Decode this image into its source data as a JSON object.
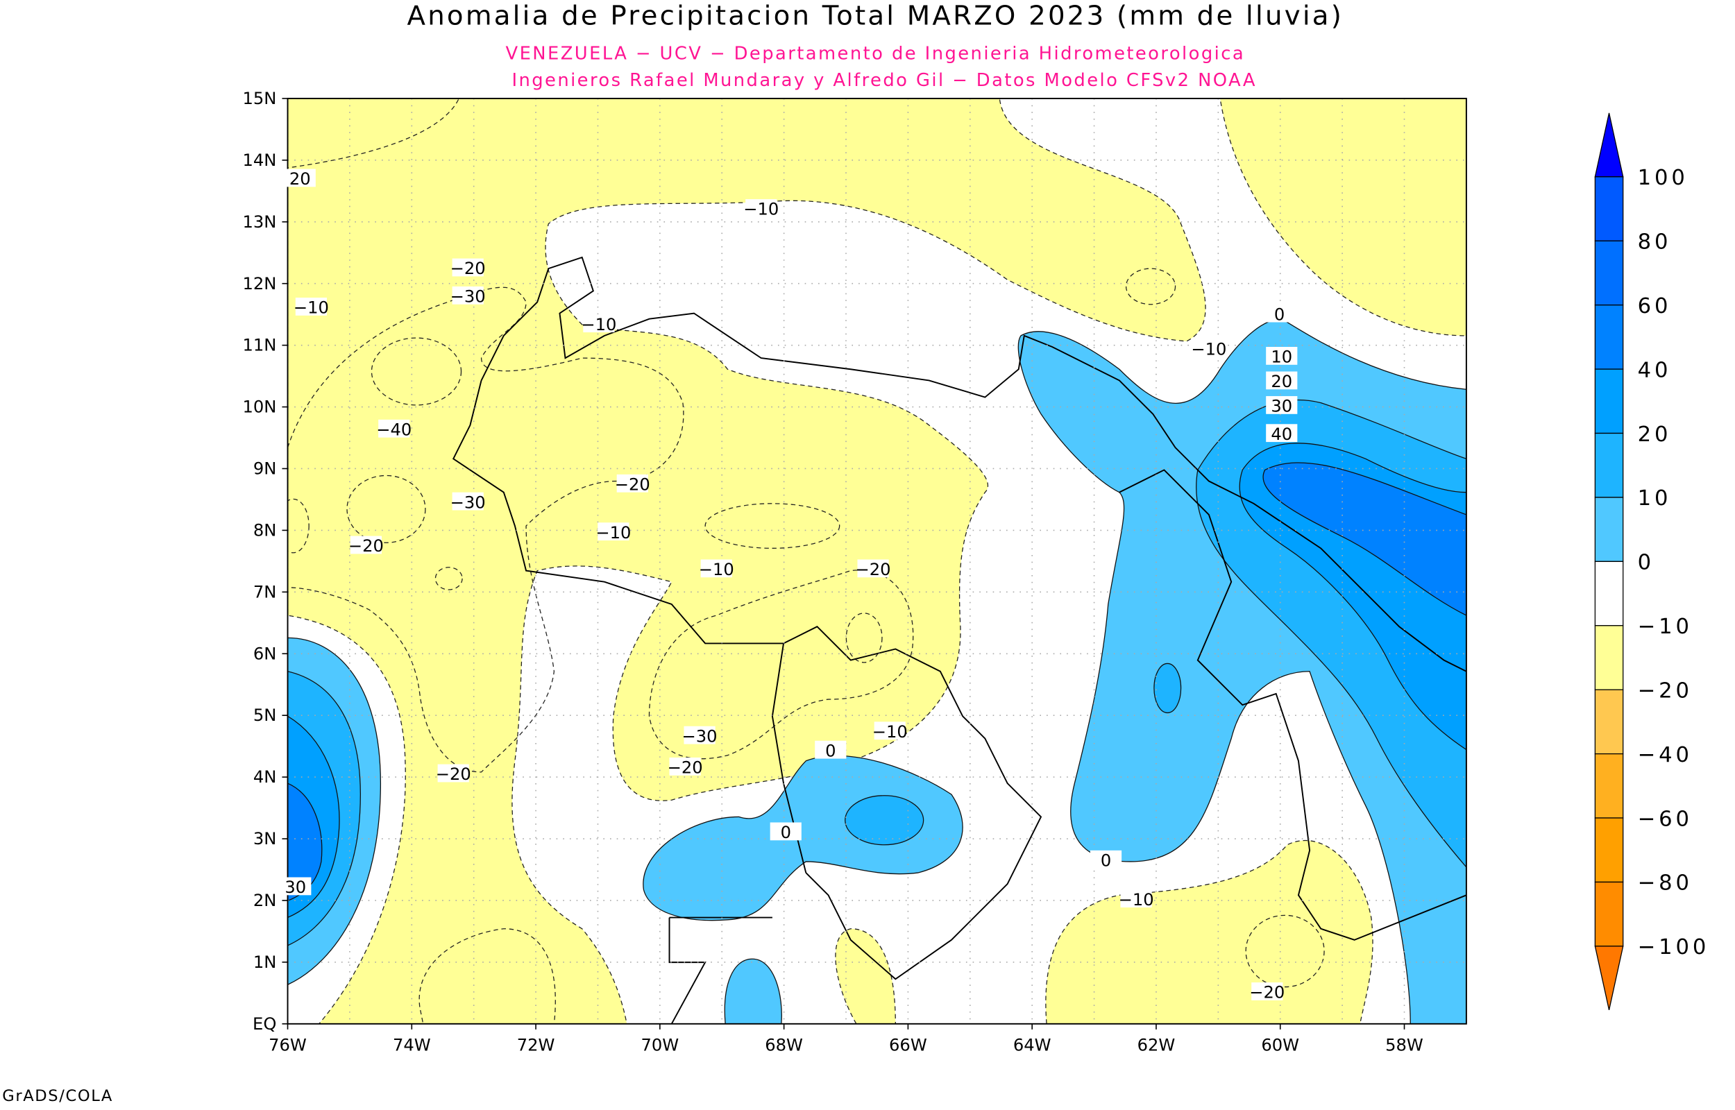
{
  "chart_data": {
    "type": "heatmap",
    "title": "Anomalia de Precipitacion Total MARZO 2023 (mm de lluvia)",
    "subtitle_lines": [
      "VENEZUELA - UCV - Departamento de Ingenieria Hidrometeorologica",
      "Ingenieros Rafael Mundaray y Alfredo Gil - Datos Modelo CFSv2 NOAA"
    ],
    "xlim": [
      -76,
      -57
    ],
    "ylim": [
      0,
      15
    ],
    "x_tick_labels": [
      "76W",
      "74W",
      "72W",
      "70W",
      "68W",
      "66W",
      "64W",
      "62W",
      "60W",
      "58W"
    ],
    "y_tick_labels": [
      "EQ",
      "1N",
      "2N",
      "3N",
      "4N",
      "5N",
      "6N",
      "7N",
      "8N",
      "9N",
      "10N",
      "11N",
      "12N",
      "13N",
      "14N",
      "15N"
    ],
    "grid": true,
    "colorbar": {
      "labels": [
        "100",
        "80",
        "60",
        "40",
        "20",
        "10",
        "0",
        "-10",
        "-20",
        "-40",
        "-60",
        "-80",
        "-100"
      ],
      "colors": [
        "#0000ff",
        "#005aff",
        "#0070ff",
        "#0082ff",
        "#00a0ff",
        "#1eb4ff",
        "#50c8ff",
        "#ffffff",
        "#ffff96",
        "#ffc850",
        "#ffb020",
        "#ffa000",
        "#ff8c00",
        "#ff7800"
      ],
      "placement": "right"
    },
    "contour_labels": [
      "-10",
      "-20",
      "-30",
      "-40",
      "0",
      "10",
      "20",
      "30",
      "40",
      "-20",
      "-10",
      "-30"
    ],
    "labels_on_map": [
      {
        "text": "20"
      },
      {
        "text": "-10"
      },
      {
        "text": "-10"
      },
      {
        "text": "-20"
      },
      {
        "text": "-30"
      },
      {
        "text": "-10"
      },
      {
        "text": "-40"
      },
      {
        "text": "-30"
      },
      {
        "text": "-20"
      },
      {
        "text": "-20"
      },
      {
        "text": "-10"
      },
      {
        "text": "-10"
      },
      {
        "text": "-20"
      },
      {
        "text": "-30"
      },
      {
        "text": "-20"
      },
      {
        "text": "-10"
      },
      {
        "text": "-20"
      },
      {
        "text": "0"
      },
      {
        "text": "0"
      },
      {
        "text": "0"
      },
      {
        "text": "-10"
      },
      {
        "text": "-20"
      },
      {
        "text": "0"
      },
      {
        "text": "10"
      },
      {
        "text": "20"
      },
      {
        "text": "30"
      },
      {
        "text": "40"
      },
      {
        "text": "-10"
      },
      {
        "text": "30"
      }
    ]
  },
  "footer": "GrADS/COLA"
}
